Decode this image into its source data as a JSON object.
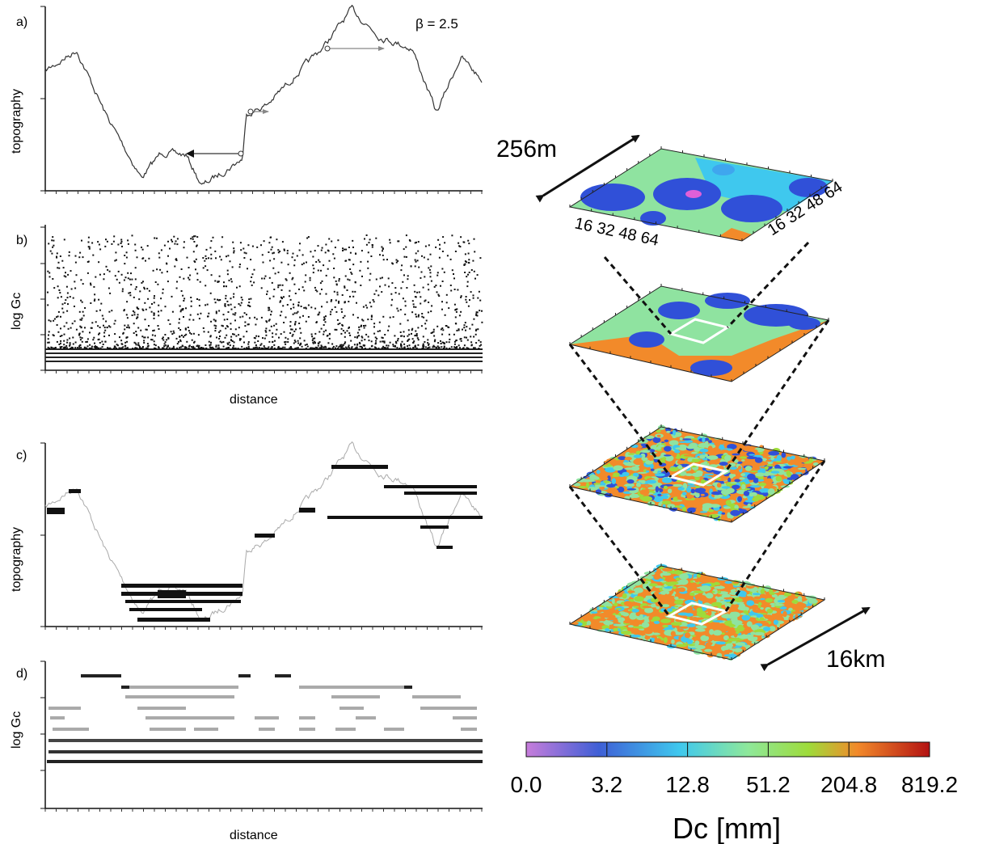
{
  "panels": {
    "a": {
      "letter": "a)",
      "ylabel": "topography",
      "annotation": "β = 2.5"
    },
    "b": {
      "letter": "b)",
      "ylabel": "log Gc",
      "xlabel": "distance"
    },
    "c": {
      "letter": "c)",
      "ylabel": "topography"
    },
    "d": {
      "letter": "d)",
      "ylabel": "log Gc",
      "xlabel": "distance"
    }
  },
  "stack": {
    "scale_top": "256m",
    "scale_bottom": "16km",
    "axis_ticks": [
      "16",
      "32",
      "48",
      "64"
    ],
    "layers": 4
  },
  "colorbar": {
    "ticks": [
      "0.0",
      "3.2",
      "12.8",
      "51.2",
      "204.8",
      "819.2"
    ],
    "label": "Dc [mm]",
    "colors": [
      "#c77ddb",
      "#3f5fd6",
      "#3fc8ee",
      "#8ee89a",
      "#9edb3a",
      "#f28a2a",
      "#b31212"
    ]
  }
}
